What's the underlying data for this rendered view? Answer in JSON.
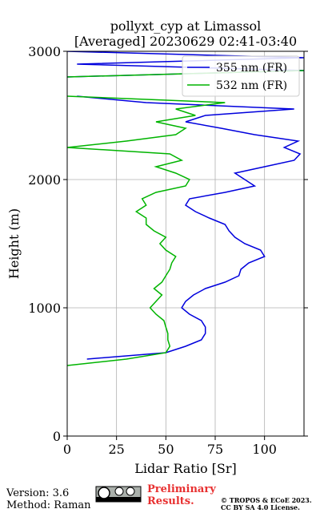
{
  "chart_data": {
    "type": "line",
    "title": [
      "pollyxt_cyp at Limassol",
      "[Averaged] 20230629 02:41-03:40"
    ],
    "x_label": "Lidar Ratio [Sr]",
    "y_label": "Height (m)",
    "xlim": [
      0,
      120
    ],
    "xticks": [
      0,
      25,
      50,
      75,
      100
    ],
    "ylim": [
      0,
      3000
    ],
    "yticks": [
      0,
      1000,
      2000,
      3000
    ],
    "grid": true,
    "legend": "upper right",
    "y": [
      550,
      600,
      650,
      700,
      750,
      800,
      850,
      900,
      950,
      1000,
      1050,
      1100,
      1150,
      1200,
      1250,
      1300,
      1350,
      1400,
      1450,
      1500,
      1550,
      1600,
      1650,
      1700,
      1750,
      1800,
      1850,
      1900,
      1950,
      2000,
      2050,
      2100,
      2150,
      2200,
      2250,
      2300,
      2350,
      2400,
      2450,
      2500,
      2550,
      2600,
      2650,
      2700,
      2750,
      2800,
      2850,
      2900,
      2950,
      3000
    ],
    "series": [
      {
        "name": "355 nm (FR)",
        "color": "#0000dd",
        "values": [
          null,
          10,
          50,
          60,
          68,
          70,
          70,
          68,
          62,
          58,
          60,
          64,
          70,
          80,
          87,
          88,
          92,
          100,
          98,
          90,
          85,
          82,
          80,
          72,
          65,
          60,
          62,
          80,
          95,
          90,
          85,
          100,
          115,
          118,
          110,
          117,
          95,
          78,
          60,
          70,
          115,
          40,
          5,
          null,
          null,
          0,
          120,
          5,
          120,
          0
        ]
      },
      {
        "name": "532 nm (FR)",
        "color": "#00b400",
        "values": [
          0,
          30,
          50,
          52,
          51,
          51,
          50,
          49,
          45,
          42,
          45,
          48,
          44,
          48,
          50,
          52,
          53,
          55,
          50,
          47,
          50,
          44,
          40,
          40,
          35,
          40,
          38,
          45,
          60,
          62,
          55,
          45,
          58,
          52,
          0,
          30,
          55,
          60,
          45,
          65,
          55,
          80,
          0,
          null,
          null,
          0,
          120,
          null,
          120,
          null
        ]
      }
    ],
    "footer": {
      "version": "Version: 3.6",
      "method": "Method: Raman",
      "status": [
        "Preliminary",
        "Results."
      ],
      "license": [
        "© TROPOS & ECoE 2023.",
        "CC BY SA 4.0 License."
      ]
    }
  }
}
